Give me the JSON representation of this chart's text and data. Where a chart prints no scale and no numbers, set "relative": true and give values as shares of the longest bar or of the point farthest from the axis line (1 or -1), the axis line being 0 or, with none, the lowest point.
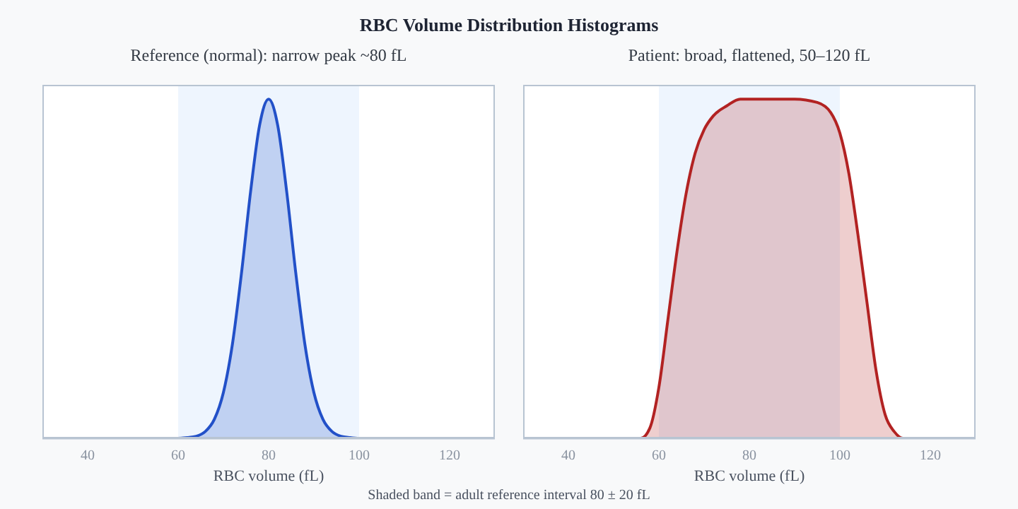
{
  "chart_data": [
    {
      "type": "area",
      "title": "RBC Volume Distribution Histograms",
      "subtitle": "Reference (normal): narrow peak ~80 fL",
      "xlabel": "RBC volume (fL)",
      "relative": true,
      "xlim": [
        30,
        130
      ],
      "xticks": [
        40,
        60,
        80,
        100,
        120
      ],
      "grid": false,
      "legend": false,
      "bands": [
        {
          "axis": "x",
          "from": 60,
          "to": 100,
          "color": "#eef5fe"
        }
      ],
      "annotations": [
        "Shaded band = adult reference interval 80 ± 20 fL"
      ],
      "x": [
        30,
        40,
        50,
        60,
        62,
        64,
        66,
        68,
        70,
        72,
        74,
        76,
        78,
        80,
        82,
        84,
        86,
        88,
        90,
        92,
        94,
        96,
        98,
        100,
        110,
        120,
        130
      ],
      "series": [
        {
          "color": "#2250c8",
          "values": [
            0,
            0,
            0,
            0,
            0.002,
            0.006,
            0.02,
            0.056,
            0.135,
            0.278,
            0.487,
            0.726,
            0.923,
            1,
            0.923,
            0.726,
            0.487,
            0.278,
            0.135,
            0.056,
            0.02,
            0.006,
            0.002,
            0,
            0,
            0,
            0
          ]
        }
      ]
    },
    {
      "type": "area",
      "subtitle": "Patient: broad, flattened, 50–120 fL",
      "xlabel": "RBC volume (fL)",
      "relative": true,
      "xlim": [
        30,
        130
      ],
      "xticks": [
        40,
        60,
        80,
        100,
        120
      ],
      "grid": false,
      "legend": false,
      "bands": [
        {
          "axis": "x",
          "from": 60,
          "to": 100,
          "color": "#eef5fe"
        }
      ],
      "x": [
        30,
        40,
        50,
        56,
        58,
        60,
        62,
        64,
        66,
        68,
        70,
        72,
        75,
        78,
        85,
        90,
        95,
        98,
        100,
        102,
        104,
        106,
        108,
        110,
        112,
        114,
        120,
        130
      ],
      "series": [
        {
          "color": "#b22222",
          "values": [
            0,
            0,
            0,
            0,
            0.03,
            0.15,
            0.35,
            0.55,
            0.72,
            0.84,
            0.91,
            0.95,
            0.98,
            1,
            1,
            1,
            0.99,
            0.96,
            0.9,
            0.78,
            0.6,
            0.4,
            0.2,
            0.07,
            0.02,
            0,
            0,
            0
          ]
        }
      ]
    }
  ]
}
